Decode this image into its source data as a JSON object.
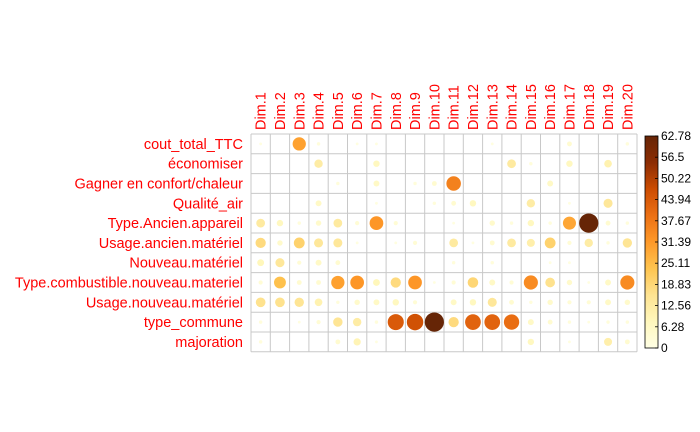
{
  "chart_data": {
    "type": "heatmap",
    "rows": [
      "cout_total_TTC",
      "économiser",
      "Gagner en confort/chaleur",
      "Qualité_air",
      "Type.Ancien.appareil",
      "Usage.ancien.matériel",
      "Nouveau.matériel",
      "Type.combustible.nouveau.materiel",
      "Usage.nouveau.matériel",
      "type_commune",
      "majoration"
    ],
    "columns": [
      "Dim.1",
      "Dim.2",
      "Dim.3",
      "Dim.4",
      "Dim.5",
      "Dim.6",
      "Dim.7",
      "Dim.8",
      "Dim.9",
      "Dim.10",
      "Dim.11",
      "Dim.12",
      "Dim.13",
      "Dim.14",
      "Dim.15",
      "Dim.16",
      "Dim.17",
      "Dim.18",
      "Dim.19",
      "Dim.20"
    ],
    "values": [
      [
        1,
        0,
        30,
        2,
        0,
        1,
        1,
        0,
        0,
        0,
        0,
        0,
        1,
        0,
        0,
        0,
        4,
        0,
        0,
        2
      ],
      [
        0,
        0,
        0,
        12,
        0,
        0,
        7,
        0,
        0,
        0,
        0,
        0,
        0,
        13,
        2,
        0,
        7,
        0,
        10,
        0
      ],
      [
        0,
        0,
        0,
        0,
        2,
        0,
        6,
        0,
        2,
        4,
        36,
        0,
        0,
        0,
        0,
        6,
        0,
        0,
        0,
        0
      ],
      [
        0,
        0,
        0,
        6,
        0,
        0,
        1,
        0,
        0,
        2,
        4,
        7,
        0,
        0,
        12,
        0,
        1,
        0,
        14,
        0
      ],
      [
        13,
        7,
        2,
        5,
        13,
        3,
        32,
        3,
        0,
        0,
        1,
        0,
        5,
        2,
        7,
        2,
        29,
        62.78,
        4,
        2
      ],
      [
        18,
        5,
        20,
        14,
        14,
        1,
        0,
        1,
        3,
        0,
        13,
        1,
        4,
        13,
        11,
        20,
        3,
        12,
        2,
        15
      ],
      [
        8,
        14,
        3,
        6,
        4,
        0,
        0,
        0,
        0,
        0,
        2,
        0,
        2,
        0,
        0,
        1,
        1,
        0,
        0,
        0
      ],
      [
        3,
        24,
        4,
        4,
        30,
        32,
        8,
        18,
        32,
        1,
        3,
        19,
        6,
        3,
        34,
        16,
        5,
        1,
        6,
        34
      ],
      [
        16,
        16,
        15,
        10,
        2,
        5,
        6,
        7,
        3,
        0,
        6,
        7,
        14,
        4,
        2,
        5,
        3,
        3,
        6,
        5
      ],
      [
        2,
        0,
        1,
        3,
        15,
        12,
        2,
        44,
        46,
        62.78,
        18,
        42,
        42,
        40,
        6,
        4,
        2,
        1,
        2,
        2
      ],
      [
        2,
        0,
        0,
        0,
        4,
        9,
        1,
        0,
        0,
        0,
        0,
        0,
        0,
        0,
        7,
        0,
        1,
        0,
        11,
        4
      ]
    ],
    "legend": {
      "min": 0,
      "max": 62.78,
      "ticks": [
        "62.78",
        "56.5",
        "50.22",
        "43.94",
        "37.67",
        "31.39",
        "25.11",
        "18.83",
        "12.56",
        "6.28",
        "0"
      ]
    },
    "colors": {
      "label": "#ff0000",
      "grid": "#c8c8c8",
      "scale": [
        "#ffffe5",
        "#fff7bc",
        "#fee391",
        "#fec44f",
        "#fe9929",
        "#ec7014",
        "#cc4c02",
        "#8c2d04",
        "#662506"
      ]
    }
  }
}
